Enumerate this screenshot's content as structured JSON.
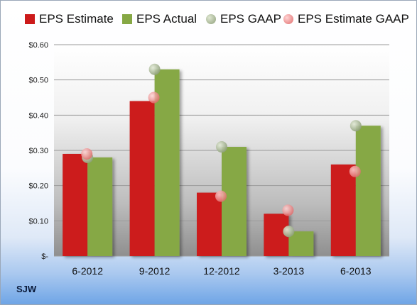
{
  "chart_data": {
    "type": "bar",
    "categories": [
      "6-2012",
      "9-2012",
      "12-2012",
      "3-2013",
      "6-2013"
    ],
    "series": [
      {
        "name": "EPS Estimate",
        "kind": "bar",
        "color": "#cc1a1a",
        "values": [
          0.29,
          0.44,
          0.18,
          0.12,
          0.26
        ]
      },
      {
        "name": "EPS Actual",
        "kind": "bar",
        "color": "#86a844",
        "values": [
          0.28,
          0.53,
          0.31,
          0.07,
          0.37
        ]
      },
      {
        "name": "EPS GAAP",
        "kind": "marker",
        "color": "#9aab84",
        "values": [
          0.28,
          0.53,
          0.31,
          0.07,
          0.37
        ]
      },
      {
        "name": "EPS Estimate GAAP",
        "kind": "marker",
        "color": "#ee8888",
        "values": [
          0.29,
          0.45,
          0.17,
          0.13,
          0.24
        ]
      }
    ],
    "ylim": [
      0,
      0.6
    ],
    "yticks": [
      0,
      0.1,
      0.2,
      0.3,
      0.4,
      0.5,
      0.6
    ],
    "ytick_labels": [
      "$-",
      "$0.10",
      "$0.20",
      "$0.30",
      "$0.40",
      "$0.50",
      "$0.60"
    ],
    "grid": true,
    "legend_position": "top"
  },
  "company": "SJW"
}
